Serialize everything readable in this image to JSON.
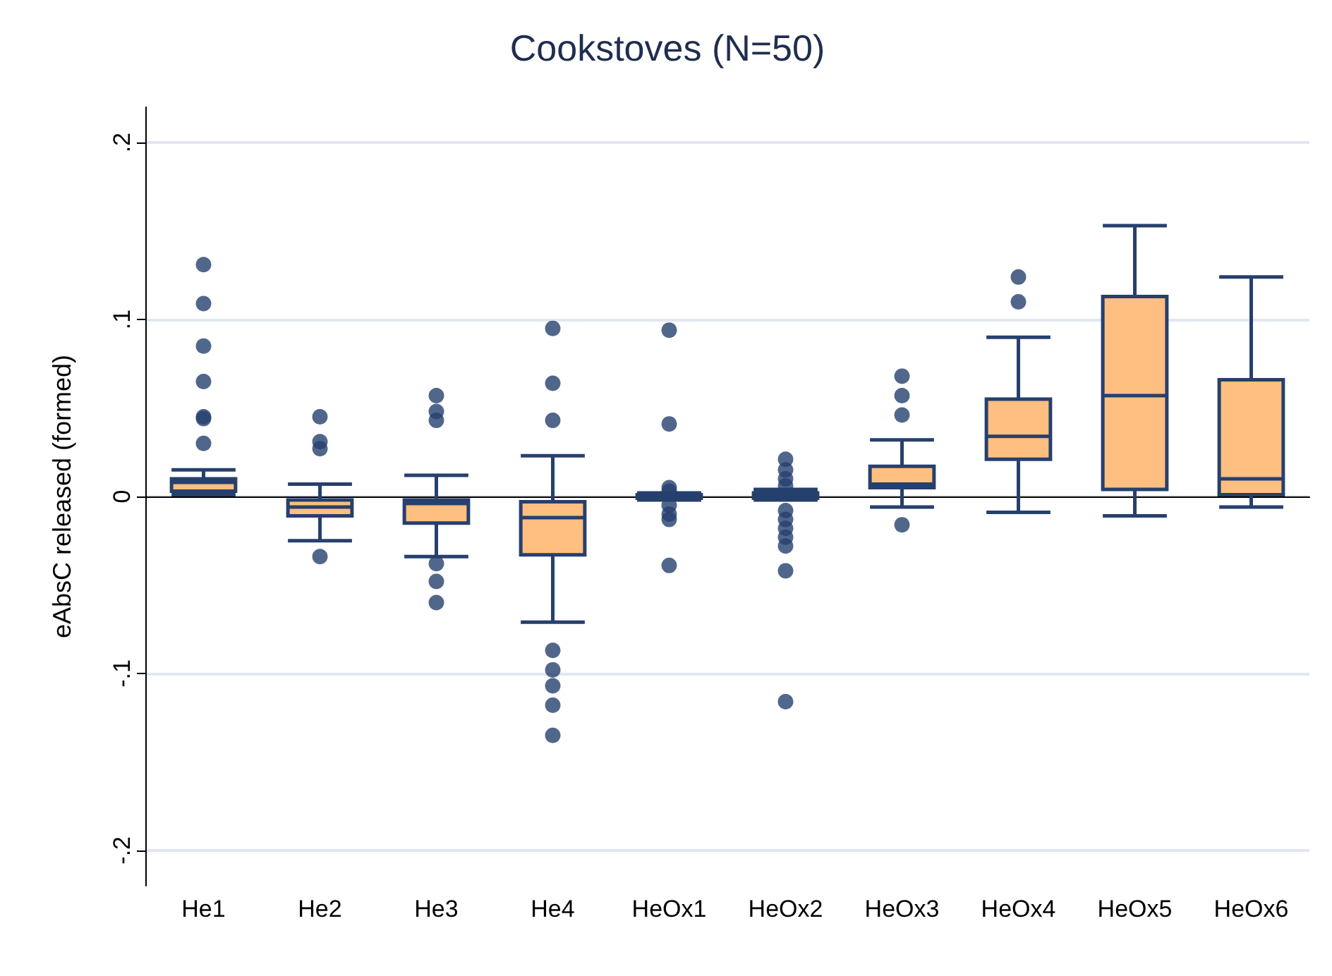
{
  "chart_data": {
    "type": "box",
    "title": "Cookstoves (N=50)",
    "ylabel": "eAbsC released (formed)",
    "categories": [
      "He1",
      "He2",
      "He3",
      "He4",
      "HeOx1",
      "HeOx2",
      "HeOx3",
      "HeOx4",
      "HeOx5",
      "HeOx6"
    ],
    "ylim": [
      -0.22,
      0.22
    ],
    "yticks": [
      {
        "value": -0.2,
        "label": "-.2"
      },
      {
        "value": -0.1,
        "label": "-.1"
      },
      {
        "value": 0,
        "label": "0"
      },
      {
        "value": 0.1,
        "label": ".1"
      },
      {
        "value": 0.2,
        "label": ".2"
      }
    ],
    "grid": "y",
    "marker": "circle",
    "series": [
      {
        "color": "#ffbf80",
        "boxes": [
          {
            "low": 0.001,
            "q1": 0.003,
            "median": 0.008,
            "q3": 0.01,
            "high": 0.015,
            "outliers": [
              0.131,
              0.109,
              0.085,
              0.065,
              0.045,
              0.044,
              0.03
            ]
          },
          {
            "low": -0.025,
            "q1": -0.011,
            "median": -0.006,
            "q3": -0.002,
            "high": 0.007,
            "outliers": [
              0.045,
              0.031,
              0.027,
              -0.034
            ]
          },
          {
            "low": -0.034,
            "q1": -0.015,
            "median": -0.004,
            "q3": -0.002,
            "high": 0.012,
            "outliers": [
              0.057,
              0.048,
              0.043,
              -0.038,
              -0.048,
              -0.06
            ]
          },
          {
            "low": -0.071,
            "q1": -0.033,
            "median": -0.012,
            "q3": -0.003,
            "high": 0.023,
            "outliers": [
              0.095,
              0.064,
              0.043,
              -0.087,
              -0.098,
              -0.107,
              -0.118,
              -0.135
            ]
          },
          {
            "low": -0.002,
            "q1": -0.001,
            "median": 0,
            "q3": 0.001,
            "high": 0.002,
            "outliers": [
              0.094,
              0.041,
              0.005,
              0.003,
              -0.005,
              -0.01,
              -0.013,
              -0.039
            ]
          },
          {
            "low": -0.002,
            "q1": -0.001,
            "median": 0.001,
            "q3": 0.002,
            "high": 0.004,
            "outliers": [
              0.021,
              0.015,
              0.01,
              0.006,
              -0.008,
              -0.013,
              -0.018,
              -0.023,
              -0.028,
              -0.042,
              -0.116
            ]
          },
          {
            "low": -0.006,
            "q1": 0.005,
            "median": 0.007,
            "q3": 0.017,
            "high": 0.032,
            "outliers": [
              0.068,
              0.057,
              0.046,
              -0.016
            ]
          },
          {
            "low": -0.009,
            "q1": 0.021,
            "median": 0.034,
            "q3": 0.055,
            "high": 0.09,
            "outliers": [
              0.124,
              0.11
            ]
          },
          {
            "low": -0.011,
            "q1": 0.004,
            "median": 0.057,
            "q3": 0.113,
            "high": 0.153
          },
          {
            "low": -0.006,
            "q1": 0.001,
            "median": 0.01,
            "q3": 0.066,
            "high": 0.124
          }
        ]
      }
    ]
  }
}
